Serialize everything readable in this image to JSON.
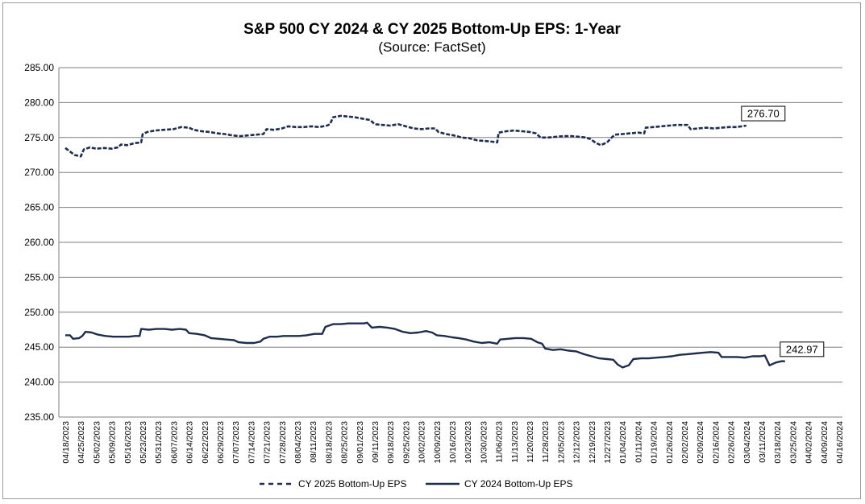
{
  "chart_data": {
    "type": "line",
    "title": "S&P 500 CY 2024 & CY 2025 Bottom-Up  EPS: 1-Year",
    "subtitle": "(Source: FactSet)",
    "xlabel": "",
    "ylabel": "",
    "ylim": [
      235,
      285
    ],
    "yticks": [
      "235.00",
      "240.00",
      "245.00",
      "250.00",
      "255.00",
      "260.00",
      "265.00",
      "270.00",
      "275.00",
      "280.00",
      "285.00"
    ],
    "grid": "horizontal",
    "legend_position": "bottom",
    "x_tick_labels": [
      "04/18/2023",
      "04/25/2023",
      "05/02/2023",
      "05/09/2023",
      "05/16/2023",
      "05/23/2023",
      "05/31/2023",
      "06/07/2023",
      "06/14/2023",
      "06/22/2023",
      "06/29/2023",
      "07/07/2023",
      "07/14/2023",
      "07/21/2023",
      "07/28/2023",
      "08/04/2023",
      "08/11/2023",
      "08/18/2023",
      "08/25/2023",
      "09/01/2023",
      "09/11/2023",
      "09/18/2023",
      "09/25/2023",
      "10/02/2023",
      "10/09/2023",
      "10/16/2023",
      "10/23/2023",
      "10/30/2023",
      "11/06/2023",
      "11/13/2023",
      "11/20/2023",
      "11/28/2023",
      "12/05/2023",
      "12/12/2023",
      "12/19/2023",
      "12/27/2023",
      "01/04/2024",
      "01/11/2024",
      "01/19/2024",
      "01/26/2024",
      "02/02/2024",
      "02/09/2024",
      "02/16/2024",
      "02/26/2024",
      "03/04/2024",
      "03/11/2024",
      "03/18/2024",
      "03/25/2024",
      "04/02/2024",
      "04/09/2024",
      "04/16/2024"
    ],
    "series": [
      {
        "name": "CY 2025 Bottom-Up EPS",
        "style": "dashed",
        "color": "#1f2d4d",
        "end_label": "276.70",
        "points": [
          [
            0,
            273.5
          ],
          [
            0.3,
            273.0
          ],
          [
            0.6,
            272.5
          ],
          [
            1.0,
            272.3
          ],
          [
            1.2,
            273.3
          ],
          [
            1.6,
            273.6
          ],
          [
            2.0,
            273.4
          ],
          [
            2.5,
            273.5
          ],
          [
            3.0,
            273.4
          ],
          [
            3.4,
            273.6
          ],
          [
            3.6,
            274.0
          ],
          [
            4.0,
            273.9
          ],
          [
            4.5,
            274.2
          ],
          [
            4.9,
            274.3
          ],
          [
            5.0,
            275.5
          ],
          [
            5.3,
            275.8
          ],
          [
            5.8,
            276.0
          ],
          [
            6.3,
            276.1
          ],
          [
            7.0,
            276.2
          ],
          [
            7.5,
            276.5
          ],
          [
            8.0,
            276.4
          ],
          [
            8.3,
            276.1
          ],
          [
            8.8,
            275.9
          ],
          [
            9.3,
            275.8
          ],
          [
            9.8,
            275.6
          ],
          [
            10.3,
            275.5
          ],
          [
            10.8,
            275.3
          ],
          [
            11.3,
            275.2
          ],
          [
            11.8,
            275.3
          ],
          [
            12.3,
            275.4
          ],
          [
            12.8,
            275.5
          ],
          [
            13.0,
            276.2
          ],
          [
            13.5,
            276.1
          ],
          [
            14.0,
            276.3
          ],
          [
            14.4,
            276.6
          ],
          [
            14.9,
            276.5
          ],
          [
            15.4,
            276.5
          ],
          [
            15.9,
            276.6
          ],
          [
            16.4,
            276.5
          ],
          [
            16.9,
            276.7
          ],
          [
            17.1,
            276.9
          ],
          [
            17.3,
            277.9
          ],
          [
            17.8,
            278.1
          ],
          [
            18.3,
            278.0
          ],
          [
            18.7,
            277.9
          ],
          [
            19.2,
            277.7
          ],
          [
            19.7,
            277.5
          ],
          [
            20.0,
            276.9
          ],
          [
            20.5,
            276.8
          ],
          [
            21.0,
            276.7
          ],
          [
            21.5,
            276.9
          ],
          [
            22.0,
            276.6
          ],
          [
            22.5,
            276.3
          ],
          [
            23.0,
            276.2
          ],
          [
            23.5,
            276.3
          ],
          [
            23.9,
            276.3
          ],
          [
            24.1,
            275.8
          ],
          [
            24.6,
            275.5
          ],
          [
            25.1,
            275.3
          ],
          [
            25.6,
            275.0
          ],
          [
            26.1,
            274.9
          ],
          [
            26.6,
            274.6
          ],
          [
            27.1,
            274.5
          ],
          [
            27.6,
            274.4
          ],
          [
            27.9,
            274.3
          ],
          [
            28.0,
            275.7
          ],
          [
            28.5,
            275.9
          ],
          [
            29.0,
            276.0
          ],
          [
            29.5,
            275.9
          ],
          [
            30.0,
            275.8
          ],
          [
            30.4,
            275.6
          ],
          [
            30.7,
            275.0
          ],
          [
            31.2,
            275.0
          ],
          [
            31.7,
            275.1
          ],
          [
            32.2,
            275.2
          ],
          [
            32.7,
            275.2
          ],
          [
            33.2,
            275.1
          ],
          [
            33.6,
            275.0
          ],
          [
            33.9,
            274.8
          ],
          [
            34.3,
            274.2
          ],
          [
            34.6,
            273.9
          ],
          [
            35.0,
            274.3
          ],
          [
            35.3,
            275.0
          ],
          [
            35.5,
            275.4
          ],
          [
            36.0,
            275.5
          ],
          [
            36.5,
            275.6
          ],
          [
            37.0,
            275.7
          ],
          [
            37.4,
            275.6
          ],
          [
            37.5,
            276.4
          ],
          [
            38.0,
            276.5
          ],
          [
            38.5,
            276.6
          ],
          [
            39.0,
            276.7
          ],
          [
            39.5,
            276.8
          ],
          [
            40.0,
            276.8
          ],
          [
            40.2,
            276.8
          ],
          [
            40.4,
            276.2
          ],
          [
            40.9,
            276.3
          ],
          [
            41.4,
            276.4
          ],
          [
            41.9,
            276.3
          ],
          [
            42.4,
            276.4
          ],
          [
            42.9,
            276.5
          ],
          [
            43.3,
            276.5
          ],
          [
            43.7,
            276.6
          ],
          [
            44.0,
            276.7
          ]
        ]
      },
      {
        "name": "CY 2024 Bottom-Up EPS",
        "style": "solid",
        "color": "#1f2d4d",
        "end_label": "242.97",
        "points": [
          [
            0,
            246.7
          ],
          [
            0.3,
            246.7
          ],
          [
            0.5,
            246.2
          ],
          [
            0.9,
            246.3
          ],
          [
            1.1,
            246.6
          ],
          [
            1.3,
            247.2
          ],
          [
            1.7,
            247.1
          ],
          [
            2.1,
            246.8
          ],
          [
            2.6,
            246.6
          ],
          [
            3.1,
            246.5
          ],
          [
            3.6,
            246.5
          ],
          [
            4.1,
            246.5
          ],
          [
            4.5,
            246.6
          ],
          [
            4.8,
            246.6
          ],
          [
            4.9,
            247.6
          ],
          [
            5.4,
            247.5
          ],
          [
            5.9,
            247.6
          ],
          [
            6.4,
            247.6
          ],
          [
            6.9,
            247.5
          ],
          [
            7.4,
            247.6
          ],
          [
            7.8,
            247.5
          ],
          [
            8.0,
            247.0
          ],
          [
            8.5,
            246.9
          ],
          [
            9.0,
            246.7
          ],
          [
            9.4,
            246.3
          ],
          [
            9.9,
            246.2
          ],
          [
            10.4,
            246.1
          ],
          [
            10.9,
            246.0
          ],
          [
            11.2,
            245.7
          ],
          [
            11.7,
            245.6
          ],
          [
            12.2,
            245.6
          ],
          [
            12.6,
            245.8
          ],
          [
            12.8,
            246.2
          ],
          [
            13.2,
            246.5
          ],
          [
            13.7,
            246.5
          ],
          [
            14.1,
            246.6
          ],
          [
            14.6,
            246.6
          ],
          [
            15.1,
            246.6
          ],
          [
            15.6,
            246.7
          ],
          [
            16.1,
            246.9
          ],
          [
            16.6,
            246.9
          ],
          [
            16.8,
            247.9
          ],
          [
            17.3,
            248.3
          ],
          [
            17.8,
            248.3
          ],
          [
            18.3,
            248.4
          ],
          [
            18.8,
            248.4
          ],
          [
            19.3,
            248.4
          ],
          [
            19.5,
            248.5
          ],
          [
            19.8,
            247.8
          ],
          [
            20.3,
            247.9
          ],
          [
            20.8,
            247.8
          ],
          [
            21.3,
            247.6
          ],
          [
            21.8,
            247.2
          ],
          [
            22.3,
            247.0
          ],
          [
            22.8,
            247.1
          ],
          [
            23.3,
            247.3
          ],
          [
            23.7,
            247.1
          ],
          [
            24.0,
            246.7
          ],
          [
            24.5,
            246.6
          ],
          [
            25.0,
            246.4
          ],
          [
            25.4,
            246.3
          ],
          [
            25.9,
            246.1
          ],
          [
            26.4,
            245.8
          ],
          [
            26.9,
            245.6
          ],
          [
            27.4,
            245.7
          ],
          [
            27.9,
            245.5
          ],
          [
            28.1,
            246.1
          ],
          [
            28.6,
            246.2
          ],
          [
            29.1,
            246.3
          ],
          [
            29.6,
            246.3
          ],
          [
            30.1,
            246.2
          ],
          [
            30.5,
            245.7
          ],
          [
            30.8,
            245.5
          ],
          [
            31.0,
            244.8
          ],
          [
            31.5,
            244.6
          ],
          [
            32.0,
            244.7
          ],
          [
            32.5,
            244.5
          ],
          [
            33.0,
            244.4
          ],
          [
            33.5,
            244.0
          ],
          [
            34.0,
            243.7
          ],
          [
            34.5,
            243.4
          ],
          [
            35.0,
            243.3
          ],
          [
            35.4,
            243.2
          ],
          [
            35.7,
            242.5
          ],
          [
            36.0,
            242.1
          ],
          [
            36.4,
            242.4
          ],
          [
            36.7,
            243.3
          ],
          [
            37.2,
            243.4
          ],
          [
            37.7,
            243.4
          ],
          [
            38.2,
            243.5
          ],
          [
            38.7,
            243.6
          ],
          [
            39.2,
            243.7
          ],
          [
            39.7,
            243.9
          ],
          [
            40.2,
            244.0
          ],
          [
            40.7,
            244.1
          ],
          [
            41.2,
            244.2
          ],
          [
            41.7,
            244.3
          ],
          [
            42.2,
            244.2
          ],
          [
            42.4,
            243.6
          ],
          [
            42.9,
            243.6
          ],
          [
            43.4,
            243.6
          ],
          [
            43.9,
            243.5
          ],
          [
            44.4,
            243.7
          ],
          [
            44.9,
            243.7
          ],
          [
            45.2,
            243.8
          ],
          [
            45.5,
            242.4
          ],
          [
            45.9,
            242.8
          ],
          [
            46.3,
            243.0
          ],
          [
            46.5,
            242.97
          ]
        ]
      }
    ]
  }
}
